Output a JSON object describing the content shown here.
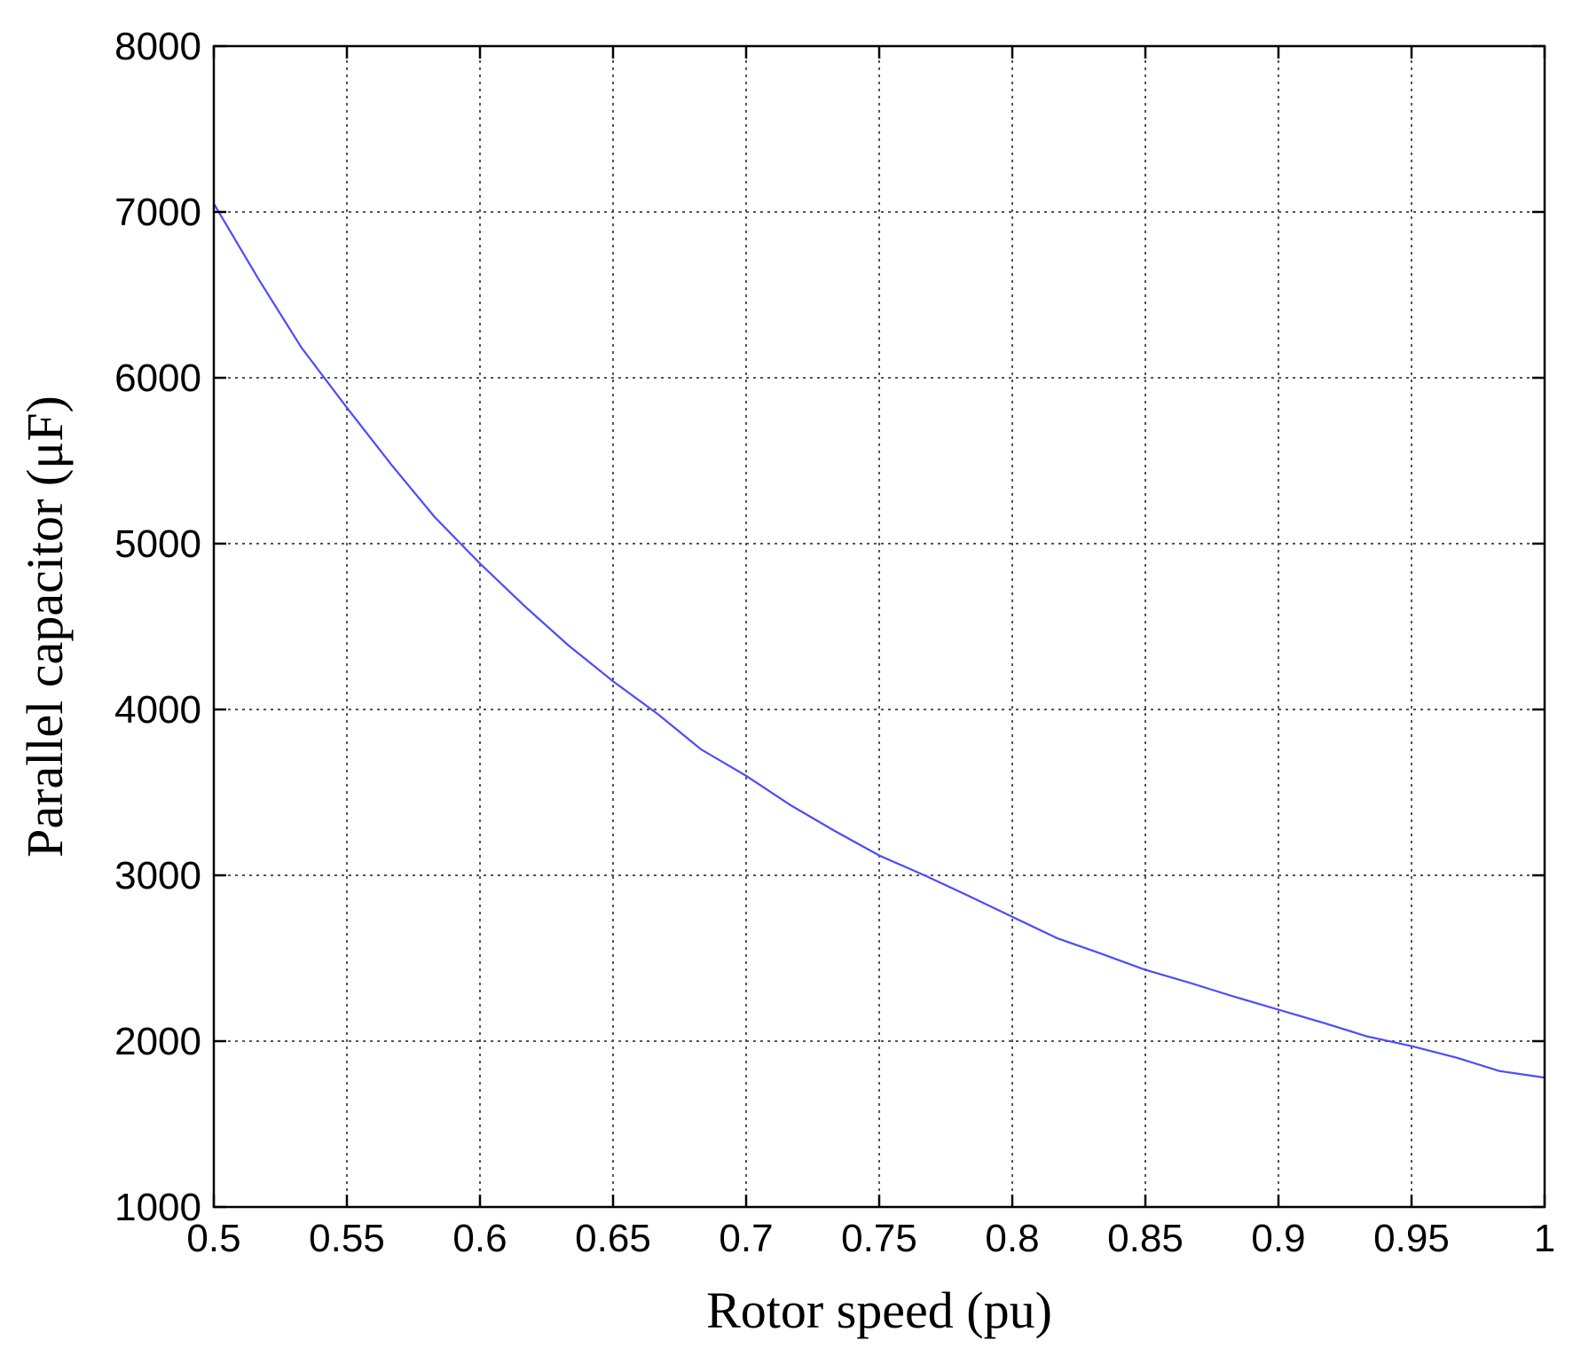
{
  "chart_data": {
    "type": "line",
    "title": "",
    "xlabel": "Rotor speed (pu)",
    "ylabel": "Parallel capacitor (μF)",
    "xlim": [
      0.5,
      1
    ],
    "ylim": [
      1000,
      8000
    ],
    "xticks": [
      0.5,
      0.55,
      0.6,
      0.65,
      0.7,
      0.75,
      0.8,
      0.85,
      0.9,
      0.95,
      1
    ],
    "xtick_labels": [
      "0.5",
      "0.55",
      "0.6",
      "0.65",
      "0.7",
      "0.75",
      "0.8",
      "0.85",
      "0.9",
      "0.95",
      "1"
    ],
    "yticks": [
      1000,
      2000,
      3000,
      4000,
      5000,
      6000,
      7000,
      8000
    ],
    "ytick_labels": [
      "1000",
      "2000",
      "3000",
      "4000",
      "5000",
      "6000",
      "7000",
      "8000"
    ],
    "grid": true,
    "legend": "none",
    "series": [
      {
        "color": "#4b4bff",
        "x": [
          0.5,
          0.517,
          0.533,
          0.55,
          0.567,
          0.583,
          0.6,
          0.617,
          0.633,
          0.65,
          0.667,
          0.683,
          0.7,
          0.717,
          0.733,
          0.75,
          0.767,
          0.783,
          0.8,
          0.817,
          0.833,
          0.85,
          0.867,
          0.883,
          0.9,
          0.917,
          0.933,
          0.95,
          0.967,
          0.983,
          1.0
        ],
        "y": [
          7050,
          6590,
          6180,
          5820,
          5470,
          5160,
          4880,
          4620,
          4390,
          4170,
          3970,
          3760,
          3600,
          3420,
          3270,
          3120,
          3000,
          2880,
          2750,
          2620,
          2530,
          2430,
          2350,
          2270,
          2190,
          2110,
          2030,
          1970,
          1900,
          1820,
          1780
        ]
      }
    ]
  }
}
